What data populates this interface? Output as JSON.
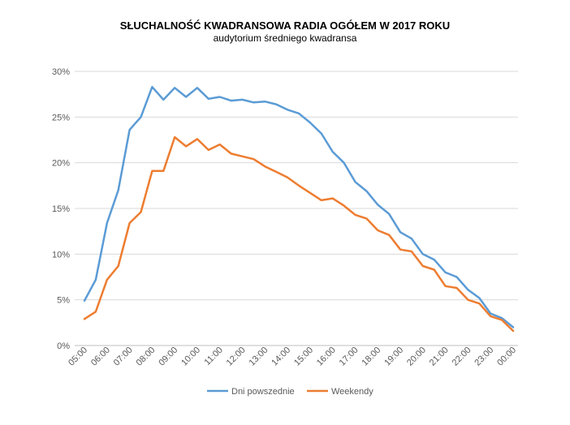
{
  "chart_data": {
    "type": "line",
    "title": "SŁUCHALNOŚĆ KWADRANSOWA RADIA OGÓŁEM W 2017 ROKU",
    "subtitle": "audytorium średniego kwadransa",
    "xlabel": "",
    "ylabel": "",
    "ylim": [
      0,
      30
    ],
    "y_ticks": [
      "0%",
      "5%",
      "10%",
      "15%",
      "20%",
      "25%",
      "30%"
    ],
    "x_tick_labels": [
      "05:00",
      "06:00",
      "07:00",
      "08:00",
      "09:00",
      "10:00",
      "11:00",
      "12:00",
      "13:00",
      "14:00",
      "15:00",
      "16:00",
      "17:00",
      "18:00",
      "19:00",
      "20:00",
      "21:00",
      "22:00",
      "23:00",
      "00:00"
    ],
    "grid": true,
    "legend_position": "bottom",
    "series": [
      {
        "name": "Dni powszednie",
        "color": "#5B9BD5",
        "values": [
          4.9,
          7.2,
          13.4,
          17.0,
          23.6,
          25.0,
          28.3,
          26.9,
          28.2,
          27.2,
          28.2,
          27.0,
          27.2,
          26.8,
          26.9,
          26.6,
          26.7,
          26.4,
          25.8,
          25.4,
          24.4,
          23.2,
          21.2,
          20.0,
          17.9,
          16.9,
          15.4,
          14.4,
          12.4,
          11.7,
          10.0,
          9.4,
          8.0,
          7.5,
          6.1,
          5.2,
          3.5,
          3.0,
          2.0
        ]
      },
      {
        "name": "Weekendy",
        "color": "#ED7D31",
        "values": [
          2.9,
          3.7,
          7.2,
          8.7,
          13.4,
          14.6,
          19.1,
          19.1,
          22.8,
          21.8,
          22.6,
          21.4,
          22.0,
          21.0,
          20.7,
          20.4,
          19.6,
          19.0,
          18.4,
          17.5,
          16.7,
          15.9,
          16.1,
          15.3,
          14.3,
          13.9,
          12.6,
          12.1,
          10.5,
          10.3,
          8.7,
          8.3,
          6.5,
          6.3,
          5.0,
          4.6,
          3.2,
          2.8,
          1.6
        ]
      }
    ]
  }
}
